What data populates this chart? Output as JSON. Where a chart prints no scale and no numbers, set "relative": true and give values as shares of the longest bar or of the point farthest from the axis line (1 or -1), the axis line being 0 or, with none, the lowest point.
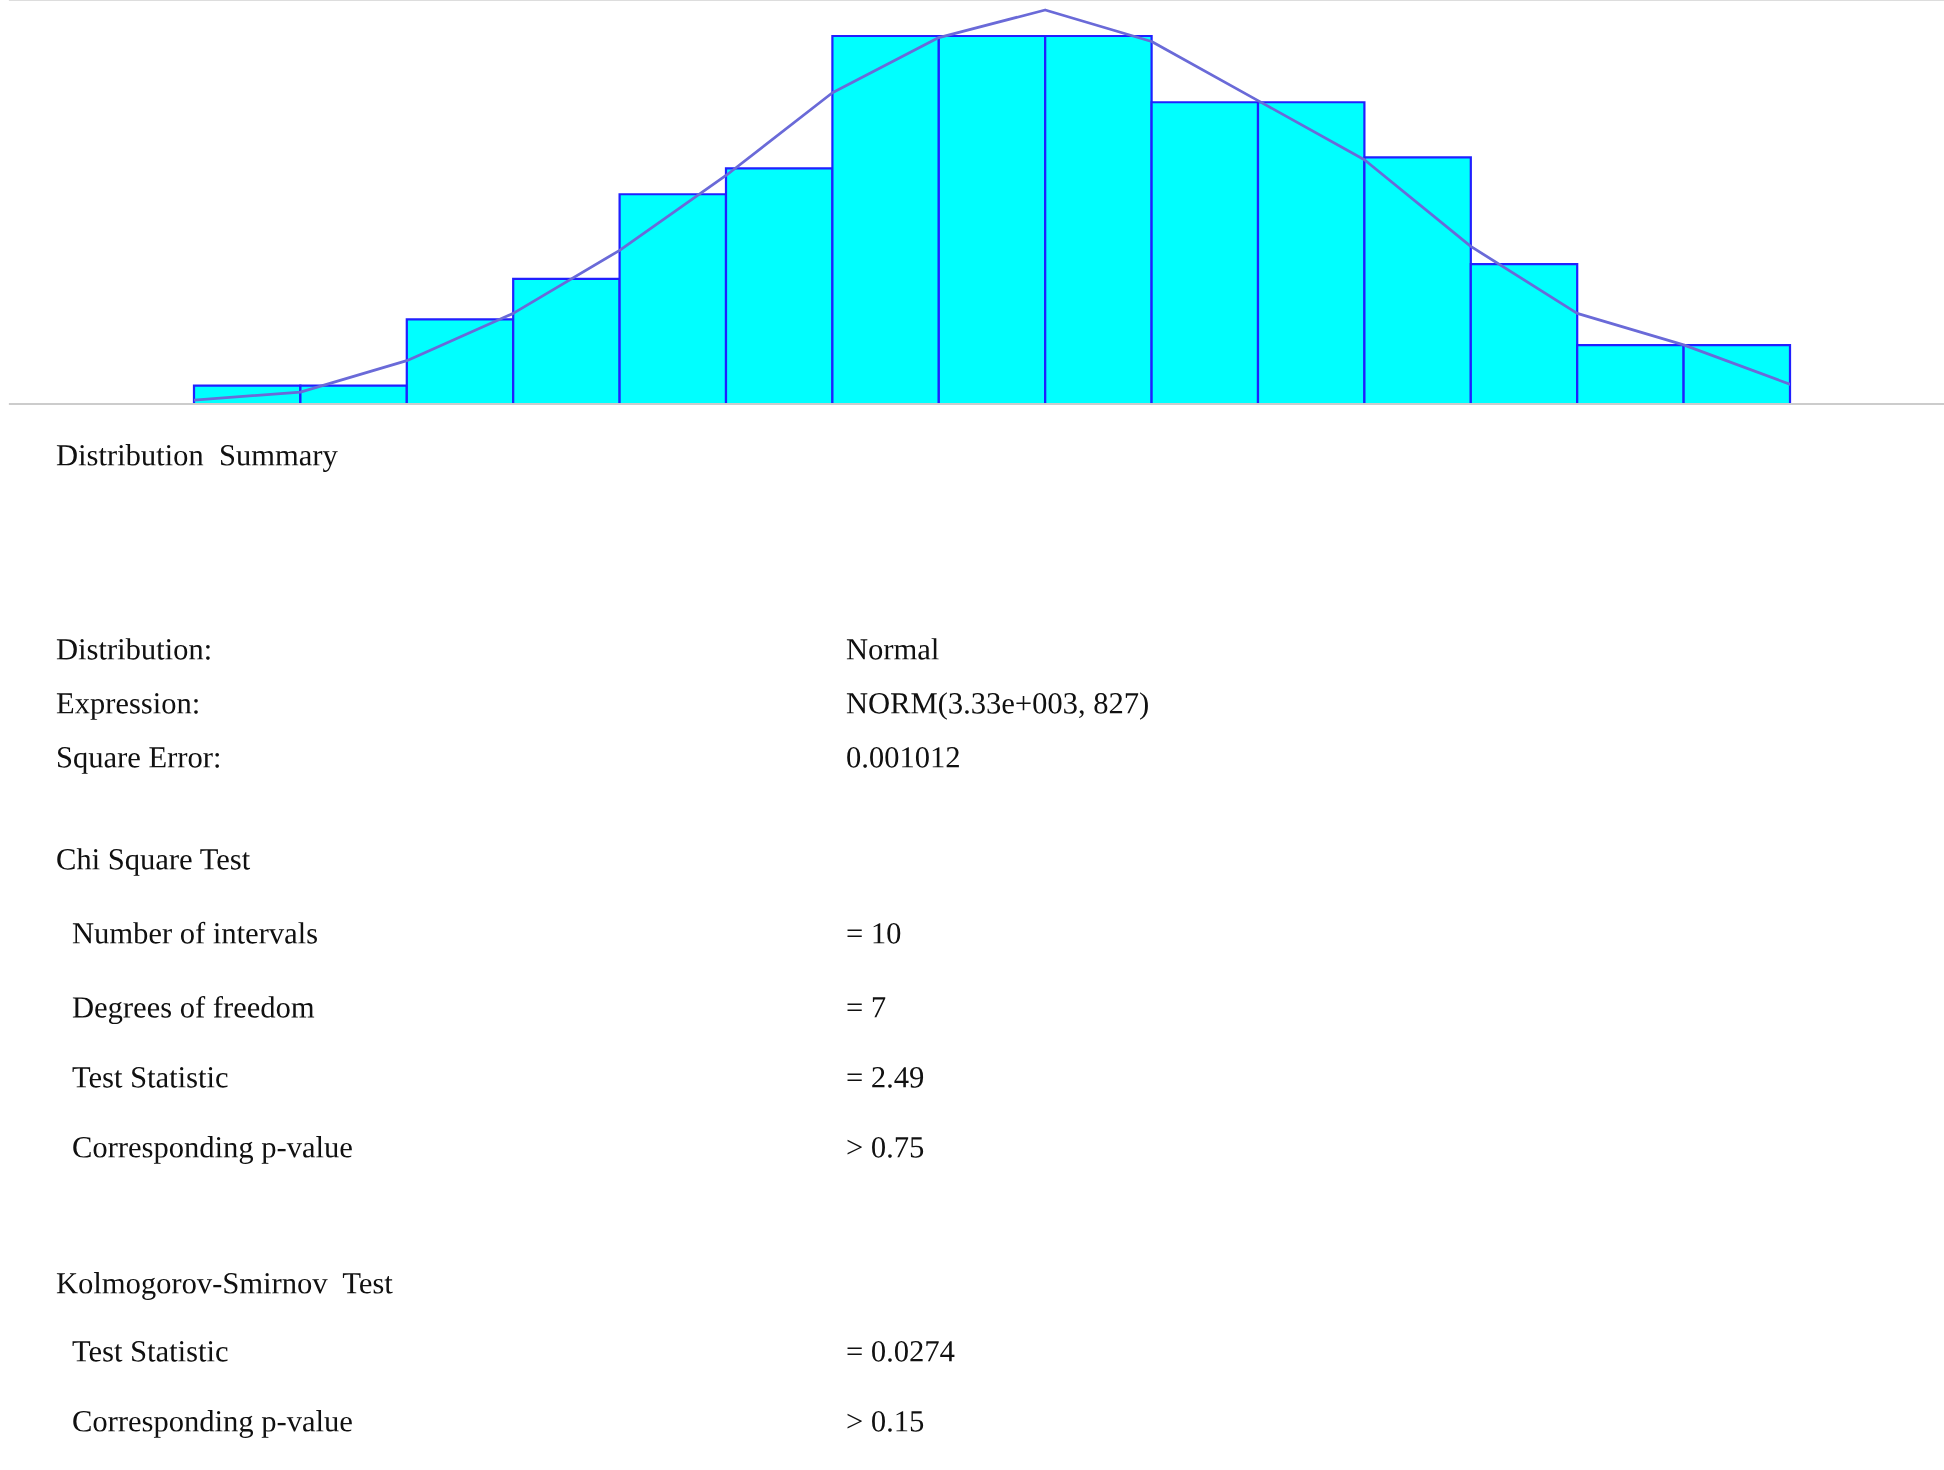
{
  "chart_data": [
    {
      "type": "bar",
      "relative": true,
      "categories": [
        null,
        null,
        null,
        null,
        null,
        null,
        null,
        null,
        null,
        null,
        null,
        null,
        null,
        null,
        null
      ],
      "series": [
        {
          "color": "#00ffff",
          "values": [
            0.05,
            0.05,
            0.23,
            0.34,
            0.57,
            0.64,
            1.0,
            1.0,
            1.0,
            0.82,
            0.82,
            0.67,
            0.38,
            0.16,
            0.16
          ]
        }
      ]
    },
    {
      "type": "line",
      "relative": true,
      "categories": [
        null,
        null,
        null,
        null,
        null,
        null,
        null,
        null,
        null,
        null,
        null,
        null,
        null,
        null,
        null,
        null
      ],
      "series": [
        {
          "color": "#6a6ad8",
          "values": [
            0.01,
            0.03,
            0.11,
            0.23,
            0.39,
            0.58,
            0.79,
            0.93,
            1.0,
            0.92,
            0.77,
            0.62,
            0.4,
            0.23,
            0.15,
            0.05
          ]
        }
      ]
    },
    {
      "type": "other",
      "annotations": [
        "Distribution  Summary",
        "Distribution:",
        "Normal",
        "Expression:",
        "NORM(3.33e+003, 827)",
        "Square Error:",
        "0.001012",
        "Chi Square Test",
        "Number of intervals",
        "= 10",
        "Degrees of freedom",
        "= 7",
        "Test Statistic",
        "= 2.49",
        "Corresponding p-value",
        "> 0.75",
        "Kolmogorov-Smirnov  Test",
        "Test Statistic",
        "= 0.0274",
        "Corresponding p-value",
        "> 0.15"
      ]
    }
  ]
}
